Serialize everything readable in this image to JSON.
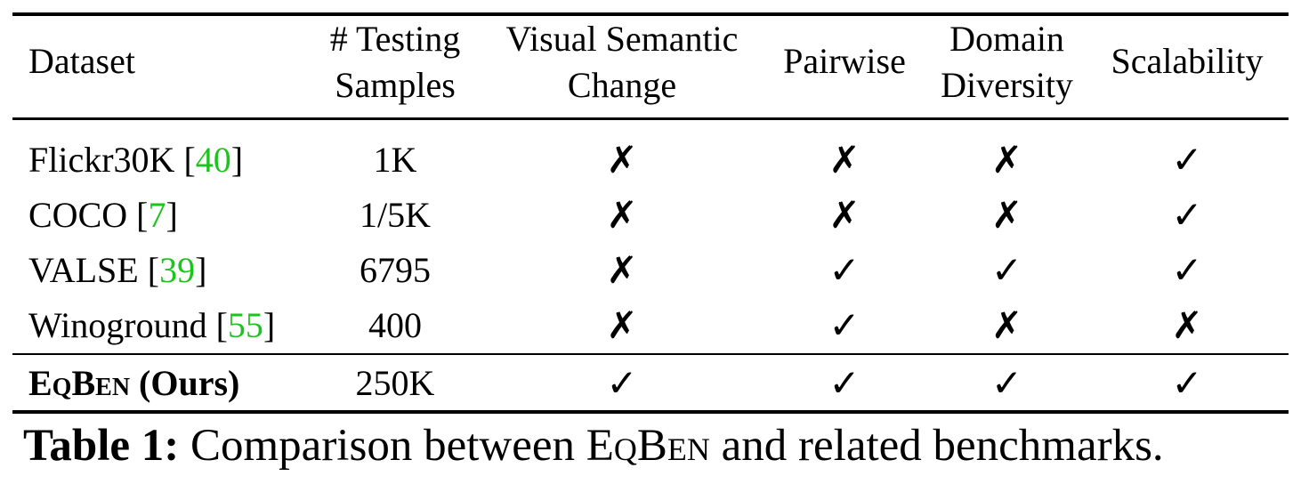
{
  "table": {
    "headers": {
      "dataset": "Dataset",
      "samples_line1": "# Testing",
      "samples_line2": "Samples",
      "visual_line1": "Visual Semantic",
      "visual_line2": "Change",
      "pairwise": "Pairwise",
      "domain_line1": "Domain",
      "domain_line2": "Diversity",
      "scalability": "Scalability"
    },
    "rows": [
      {
        "name": "Flickr30K",
        "cite": "40",
        "samples": "1K",
        "visual": "✗",
        "pairwise": "✗",
        "domain": "✗",
        "scalability": "✓"
      },
      {
        "name": "COCO",
        "cite": "7",
        "samples": "1/5K",
        "visual": "✗",
        "pairwise": "✗",
        "domain": "✗",
        "scalability": "✓"
      },
      {
        "name": "VALSE",
        "cite": "39",
        "samples": "6795",
        "visual": "✗",
        "pairwise": "✓",
        "domain": "✓",
        "scalability": "✓"
      },
      {
        "name": "Winoground",
        "cite": "55",
        "samples": "400",
        "visual": "✗",
        "pairwise": "✓",
        "domain": "✗",
        "scalability": "✗"
      }
    ],
    "ours": {
      "name": "EqBen",
      "suffix": "(Ours)",
      "samples": "250K",
      "visual": "✓",
      "pairwise": "✓",
      "domain": "✓",
      "scalability": "✓"
    },
    "colors": {
      "citation": "#1ec41e"
    }
  },
  "caption": {
    "label": "Table 1:",
    "text_before": "Comparison between",
    "name": "EqBen",
    "text_after": "and related benchmarks."
  }
}
